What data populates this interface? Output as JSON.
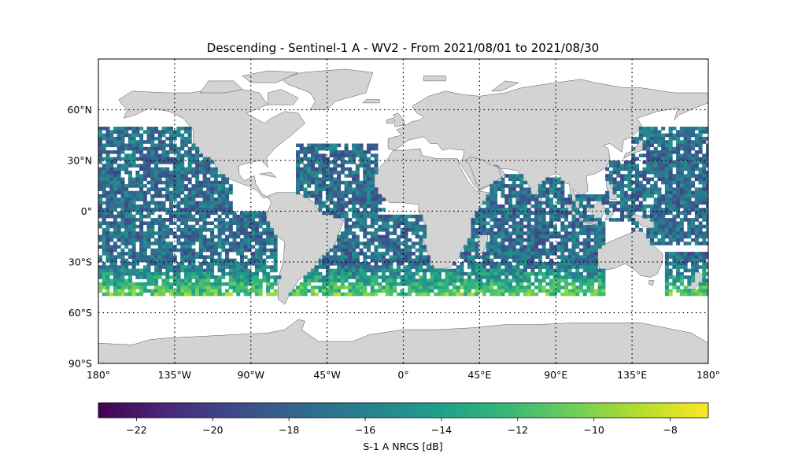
{
  "chart_data": {
    "type": "heatmap",
    "title": "Descending - Sentinel-1 A - WV2 - From 2021/08/01 to 2021/08/30",
    "projection": "plate-carree world map",
    "xlim": [
      -180,
      180
    ],
    "ylim": [
      -90,
      90
    ],
    "x_ticks": [
      {
        "value": -180,
        "label": "180°"
      },
      {
        "value": -135,
        "label": "135°W"
      },
      {
        "value": -90,
        "label": "90°W"
      },
      {
        "value": -45,
        "label": "45°W"
      },
      {
        "value": 0,
        "label": "0°"
      },
      {
        "value": 45,
        "label": "45°E"
      },
      {
        "value": 90,
        "label": "90°E"
      },
      {
        "value": 135,
        "label": "135°E"
      },
      {
        "value": 180,
        "label": "180°"
      }
    ],
    "y_ticks": [
      {
        "value": 60,
        "label": "60°N"
      },
      {
        "value": 30,
        "label": "30°N"
      },
      {
        "value": 0,
        "label": "0°"
      },
      {
        "value": -30,
        "label": "30°S"
      },
      {
        "value": -60,
        "label": "60°S"
      },
      {
        "value": -90,
        "label": "90°S"
      }
    ],
    "gridlines": "dotted, every 45° longitude and 30° latitude",
    "data_extent": {
      "lat_min": -50,
      "lat_max": 50
    },
    "colormap": "viridis",
    "colorbar": {
      "label": "S-1 A NRCS [dB]",
      "range": [
        -23,
        -7
      ],
      "ticks": [
        -22,
        -20,
        -18,
        -16,
        -14,
        -12,
        -10,
        -8
      ],
      "orientation": "horizontal",
      "placement": "bottom"
    },
    "trend": "NRCS mostly -20 to -14 dB in tropical and subtropical oceans; higher values (-12 to -8 dB) in the Southern Ocean band near 40°S-50°S",
    "ocean_regions_sampled": [
      "North Pacific",
      "South Pacific",
      "North Atlantic",
      "South Atlantic",
      "Indian Ocean",
      "Western Pacific"
    ]
  },
  "colors": {
    "land": "#d3d3d3",
    "coast": "#555555",
    "viridis": [
      "#440154",
      "#482878",
      "#3e4a89",
      "#31688e",
      "#26828e",
      "#1f9e89",
      "#35b779",
      "#6ece58",
      "#b5de2b",
      "#fde725"
    ]
  }
}
